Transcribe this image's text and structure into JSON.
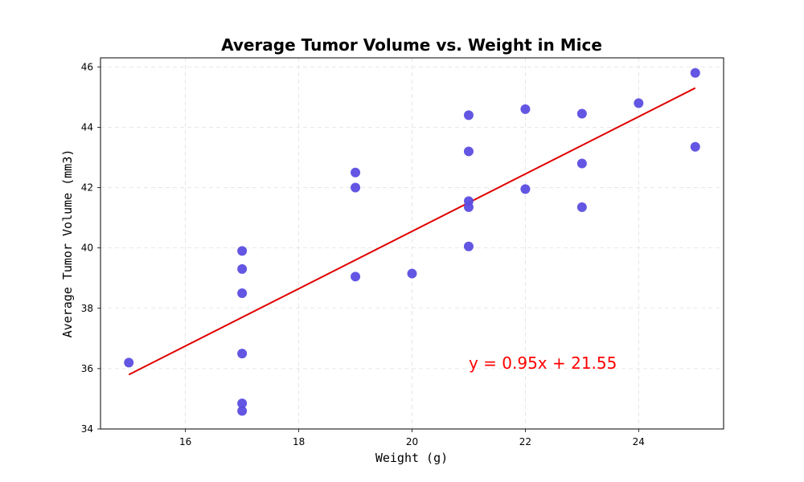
{
  "chart_data": {
    "type": "scatter",
    "title": "Average Tumor Volume vs. Weight in Mice",
    "xlabel": "Weight (g)",
    "ylabel": "Average Tumor Volume (mm3)",
    "xlim": [
      14.5,
      25.5
    ],
    "ylim": [
      34,
      46.3
    ],
    "xticks": [
      16,
      18,
      20,
      22,
      24
    ],
    "yticks": [
      34,
      36,
      38,
      40,
      42,
      44,
      46
    ],
    "grid": true,
    "points": [
      {
        "x": 15,
        "y": 36.2
      },
      {
        "x": 17,
        "y": 34.6
      },
      {
        "x": 17,
        "y": 34.85
      },
      {
        "x": 17,
        "y": 36.5
      },
      {
        "x": 17,
        "y": 38.5
      },
      {
        "x": 17,
        "y": 39.3
      },
      {
        "x": 17,
        "y": 39.9
      },
      {
        "x": 19,
        "y": 39.05
      },
      {
        "x": 19,
        "y": 42.0
      },
      {
        "x": 19,
        "y": 42.5
      },
      {
        "x": 20,
        "y": 39.15
      },
      {
        "x": 21,
        "y": 40.05
      },
      {
        "x": 21,
        "y": 41.35
      },
      {
        "x": 21,
        "y": 41.55
      },
      {
        "x": 21,
        "y": 43.2
      },
      {
        "x": 21,
        "y": 44.4
      },
      {
        "x": 22,
        "y": 41.95
      },
      {
        "x": 22,
        "y": 44.6
      },
      {
        "x": 23,
        "y": 41.35
      },
      {
        "x": 23,
        "y": 42.8
      },
      {
        "x": 23,
        "y": 44.45
      },
      {
        "x": 24,
        "y": 44.8
      },
      {
        "x": 25,
        "y": 43.35
      },
      {
        "x": 25,
        "y": 45.8
      }
    ],
    "regression": {
      "slope": 0.95,
      "intercept": 21.55,
      "x_range": [
        15,
        25
      ],
      "label": "y = 0.95x + 21.55",
      "label_x": 21,
      "label_y": 36.0
    },
    "colors": {
      "points": "#5b4de0",
      "line": "#e00000",
      "annotation": "#ff0000"
    }
  }
}
